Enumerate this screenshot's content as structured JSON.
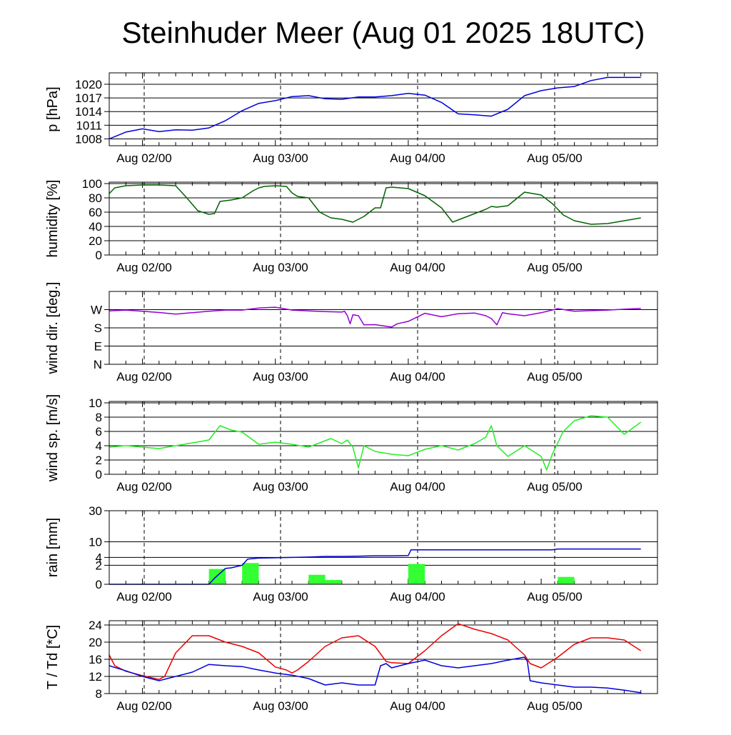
{
  "title": "Steinhuder Meer (Aug 01 2025 18UTC)",
  "x_tick_labels": [
    "Aug 02/00",
    "Aug 03/00",
    "Aug 04/00",
    "Aug 05/00"
  ],
  "colors": {
    "pressure": "#0000dd",
    "humidity": "#006400",
    "wind_dir": "#9400d3",
    "wind_sp": "#22ee22",
    "rain_bar": "#33ff33",
    "rain_cum": "#0000cc",
    "temp": "#ee0000",
    "dewpoint": "#0000dd"
  },
  "chart_data": [
    {
      "type": "line",
      "ylabel": "p [hPa]",
      "ylim": [
        1006.5,
        1022.5
      ],
      "yticks": [
        1008,
        1011,
        1014,
        1017,
        1020
      ],
      "ytick_labels": [
        "1008",
        "1011",
        "1014",
        "1017",
        "1020"
      ],
      "x_hours": [
        0,
        3,
        6,
        9,
        12,
        15,
        18,
        21,
        24,
        27,
        30,
        33,
        36,
        39,
        42,
        45,
        48,
        51,
        54,
        57,
        60,
        63,
        66,
        69,
        72,
        75,
        78,
        81,
        84,
        87,
        90,
        93,
        96
      ],
      "series": [
        {
          "values": [
            1008.0,
            1009.5,
            1010.2,
            1009.6,
            1010.0,
            1009.9,
            1010.4,
            1012.0,
            1014.2,
            1015.8,
            1016.4,
            1017.3,
            1017.5,
            1016.8,
            1016.7,
            1017.2,
            1017.2,
            1017.5,
            1018.0,
            1017.6,
            1016.0,
            1013.5,
            1013.3,
            1013.0,
            1014.5,
            1017.5,
            1018.6,
            1019.2,
            1019.5,
            1020.8,
            1021.5,
            1021.5,
            1021.5
          ]
        }
      ]
    },
    {
      "type": "line",
      "ylabel": "humidity [%]",
      "ylim": [
        0,
        102
      ],
      "yticks": [
        0,
        20,
        40,
        60,
        80,
        100
      ],
      "ytick_labels": [
        "0",
        "20",
        "40",
        "60",
        "80",
        "100"
      ],
      "x_hours": [
        0,
        1,
        3,
        6,
        9,
        12,
        14,
        16,
        18,
        19,
        20,
        22,
        24,
        26,
        27,
        28,
        30,
        32,
        33,
        34,
        36,
        38,
        40,
        42,
        44,
        46,
        48,
        49,
        50,
        51,
        54,
        57,
        60,
        62,
        64,
        66,
        68,
        69,
        70,
        72,
        75,
        78,
        80,
        82,
        84,
        87,
        90,
        93,
        96
      ],
      "series": [
        {
          "values": [
            86,
            94,
            97,
            98,
            98,
            97,
            80,
            62,
            57,
            58,
            75,
            77,
            80,
            90,
            94,
            96,
            97,
            96,
            87,
            82,
            80,
            60,
            52,
            50,
            46,
            54,
            66,
            66,
            94,
            95,
            93,
            83,
            66,
            46,
            52,
            58,
            64,
            68,
            67,
            69,
            88,
            84,
            72,
            56,
            48,
            43,
            44,
            48,
            52
          ]
        }
      ]
    },
    {
      "type": "line",
      "ylabel": "wind dir. [deg.]",
      "ylim": [
        0,
        360
      ],
      "yticks": [
        0,
        90,
        180,
        270
      ],
      "ytick_labels": [
        "N",
        "E",
        "S",
        "W"
      ],
      "x_hours": [
        0,
        3,
        6,
        9,
        12,
        15,
        18,
        21,
        24,
        27,
        30,
        33,
        36,
        39,
        42,
        42.5,
        43,
        43.5,
        44,
        45,
        46,
        48,
        51,
        52,
        54,
        57,
        60,
        63,
        66,
        68,
        69,
        70,
        71,
        72,
        75,
        78,
        81,
        84,
        87,
        90,
        93,
        96
      ],
      "series": [
        {
          "values": [
            264,
            268,
            262,
            256,
            248,
            255,
            262,
            268,
            268,
            278,
            282,
            268,
            264,
            260,
            258,
            262,
            240,
            200,
            245,
            240,
            195,
            196,
            184,
            200,
            212,
            252,
            235,
            250,
            253,
            240,
            226,
            195,
            255,
            250,
            240,
            255,
            275,
            262,
            265,
            268,
            272,
            276
          ]
        }
      ]
    },
    {
      "type": "line",
      "ylabel": "wind sp. [m/s]",
      "ylim": [
        0,
        10.2
      ],
      "yticks": [
        0,
        2,
        4,
        6,
        8,
        10
      ],
      "ytick_labels": [
        "0",
        "2",
        "4",
        "6",
        "8",
        "10"
      ],
      "x_hours": [
        0,
        3,
        6,
        9,
        12,
        15,
        18,
        20,
        22,
        24,
        27,
        30,
        33,
        36,
        38,
        40,
        42,
        43,
        44,
        45,
        46,
        48,
        51,
        54,
        57,
        60,
        63,
        66,
        68,
        69,
        70,
        72,
        75,
        78,
        79,
        80,
        82,
        84,
        87,
        90,
        93,
        96
      ],
      "series": [
        {
          "values": [
            3.8,
            4.0,
            3.8,
            3.6,
            4.0,
            4.4,
            4.8,
            6.8,
            6.2,
            5.9,
            4.2,
            4.5,
            4.2,
            3.8,
            4.4,
            5.0,
            4.3,
            4.8,
            3.8,
            0.9,
            4.0,
            3.2,
            2.8,
            2.6,
            3.5,
            4.0,
            3.4,
            4.3,
            5.2,
            6.8,
            4.0,
            2.5,
            4.0,
            2.5,
            0.6,
            2.8,
            6.0,
            7.5,
            8.2,
            8.0,
            5.6,
            7.3
          ]
        }
      ]
    },
    {
      "type": "bar",
      "ylabel": "rain [mm]",
      "ylim": [
        0,
        30
      ],
      "yticks": [
        0,
        2,
        4,
        10,
        30
      ],
      "ytick_labels": [
        "0",
        "2",
        "4",
        "10",
        "30"
      ],
      "y_scale": "sqrt",
      "bar_width_hours": 3,
      "bars": {
        "x_hours": [
          19.5,
          25.5,
          37.5,
          40.5,
          55.5,
          82.5
        ],
        "values": [
          1.3,
          2.5,
          0.5,
          0.1,
          2.3,
          0.3
        ]
      },
      "cumulative": {
        "x_hours": [
          0,
          18,
          19,
          21,
          22,
          24,
          25,
          27,
          30,
          33,
          36,
          39,
          42,
          45,
          48,
          51,
          54,
          54.5,
          57,
          60,
          63,
          66,
          69,
          72,
          75,
          78,
          80,
          81,
          84,
          87,
          90,
          93,
          96
        ],
        "values": [
          0,
          0,
          0.2,
          1.4,
          1.5,
          2.0,
          3.5,
          3.8,
          3.9,
          4.0,
          4.1,
          4.3,
          4.3,
          4.4,
          4.5,
          4.5,
          4.6,
          6.6,
          6.6,
          6.6,
          6.6,
          6.6,
          6.6,
          6.6,
          6.6,
          6.6,
          6.6,
          6.9,
          6.9,
          6.9,
          6.9,
          6.9,
          6.9
        ]
      }
    },
    {
      "type": "line",
      "ylabel": "T / Td [*C]",
      "ylim": [
        8,
        25
      ],
      "yticks": [
        8,
        12,
        16,
        20,
        24
      ],
      "ytick_labels": [
        "8",
        "12",
        "16",
        "20",
        "24"
      ],
      "series": [
        {
          "x_hours": [
            0,
            1,
            3,
            6,
            9,
            10,
            12,
            15,
            18,
            21,
            24,
            27,
            30,
            32,
            33,
            34,
            36,
            39,
            42,
            45,
            48,
            50,
            51,
            54,
            57,
            60,
            63,
            66,
            69,
            72,
            75,
            76,
            78,
            81,
            84,
            87,
            90,
            93,
            96
          ],
          "values": [
            17,
            14.5,
            13.2,
            12.2,
            11.3,
            12.0,
            17.5,
            21.5,
            21.5,
            20.0,
            19.0,
            17.5,
            14.2,
            13.5,
            12.8,
            13.5,
            15.5,
            19.0,
            21.0,
            21.5,
            19.0,
            15.5,
            15.2,
            15.0,
            18.0,
            21.5,
            24.3,
            23.0,
            22.0,
            20.5,
            17.0,
            15.0,
            14.0,
            16.5,
            19.5,
            21.0,
            21.0,
            20.5,
            18.0
          ]
        },
        {
          "x_hours": [
            0,
            3,
            6,
            9,
            12,
            15,
            18,
            21,
            24,
            27,
            30,
            33,
            36,
            39,
            42,
            45,
            48,
            49,
            50,
            51,
            54,
            57,
            60,
            63,
            66,
            69,
            72,
            75,
            75.5,
            76,
            78,
            81,
            84,
            87,
            90,
            93,
            96
          ],
          "values": [
            14.5,
            13.3,
            12.0,
            11.0,
            12.0,
            13.0,
            14.8,
            14.5,
            14.3,
            13.5,
            12.8,
            12.3,
            11.5,
            10.0,
            10.5,
            10.0,
            10.0,
            14.5,
            15.0,
            14.0,
            15.0,
            15.8,
            14.5,
            14.0,
            14.5,
            15.0,
            15.8,
            16.5,
            15.5,
            11.0,
            10.5,
            10.0,
            9.5,
            9.5,
            9.3,
            8.8,
            8.2
          ]
        }
      ]
    }
  ]
}
